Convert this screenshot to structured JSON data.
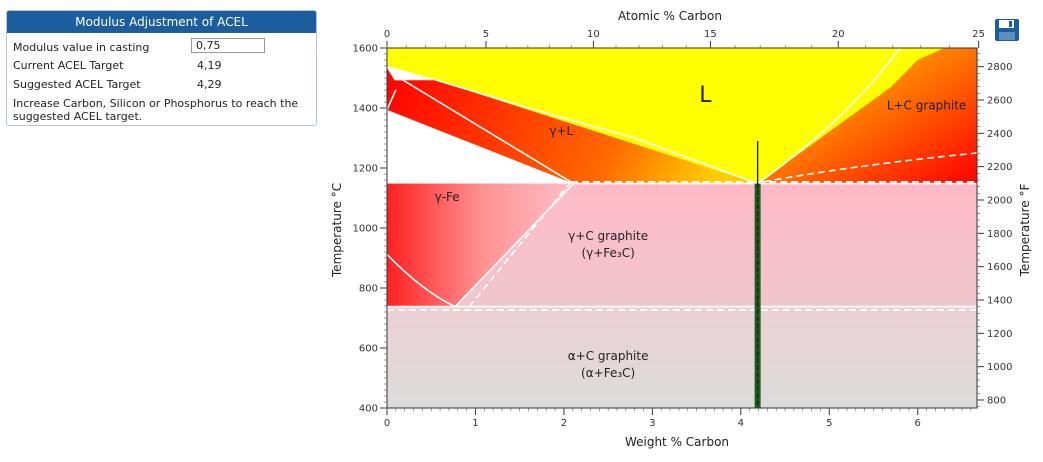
{
  "panel": {
    "title": "Modulus Adjustment of ACEL",
    "modulus_label": "Modulus value in casting",
    "modulus_value": "0,75",
    "current_label": "Current ACEL Target",
    "current_value": "4,19",
    "suggested_label": "Suggested ACEL Target",
    "suggested_value": "4,29",
    "note": "Increase Carbon, Silicon or Phosphorus to reach the suggested ACEL target."
  },
  "toolbar": {
    "save_icon": "floppy-disk-icon",
    "save_color": "#1c5d9f"
  },
  "chart_data": {
    "type": "phase-diagram",
    "title": "",
    "x_bottom_label": "Weight % Carbon",
    "x_top_label": "Atomic % Carbon",
    "y_left_label": "Temperature °C",
    "y_right_label": "Temperature °F",
    "x_bottom_ticks": [
      "0",
      "1",
      "2",
      "3",
      "4",
      "5",
      "6"
    ],
    "x_top_ticks": [
      "0",
      "5",
      "10",
      "15",
      "20",
      "25"
    ],
    "y_left_ticks": [
      "400",
      "600",
      "800",
      "1000",
      "1200",
      "1400",
      "1600"
    ],
    "y_right_ticks": [
      "800",
      "1000",
      "1200",
      "1400",
      "1600",
      "1800",
      "2000",
      "2200",
      "2400",
      "2600",
      "2800"
    ],
    "xlim_wt": [
      0,
      6.67
    ],
    "ylim_c": [
      400,
      1600
    ],
    "regions": [
      {
        "label": "L"
      },
      {
        "label": "L+C graphite"
      },
      {
        "label": "γ+L"
      },
      {
        "label": "γ-Fe"
      },
      {
        "label": "γ+C graphite",
        "sub": "(γ+Fe₃C)"
      },
      {
        "label": "α+C graphite",
        "sub": "(α+Fe₃C)"
      }
    ],
    "eutectic_c": 1148,
    "eutectoid_c": 738,
    "marker_wt": 4.19,
    "marker_color": "#1e5c1e",
    "colors": {
      "liquid": "#ffff00",
      "hot": "#ff0000",
      "austenite": "#ffbfca",
      "ferrite": "#dcdcdc"
    }
  }
}
